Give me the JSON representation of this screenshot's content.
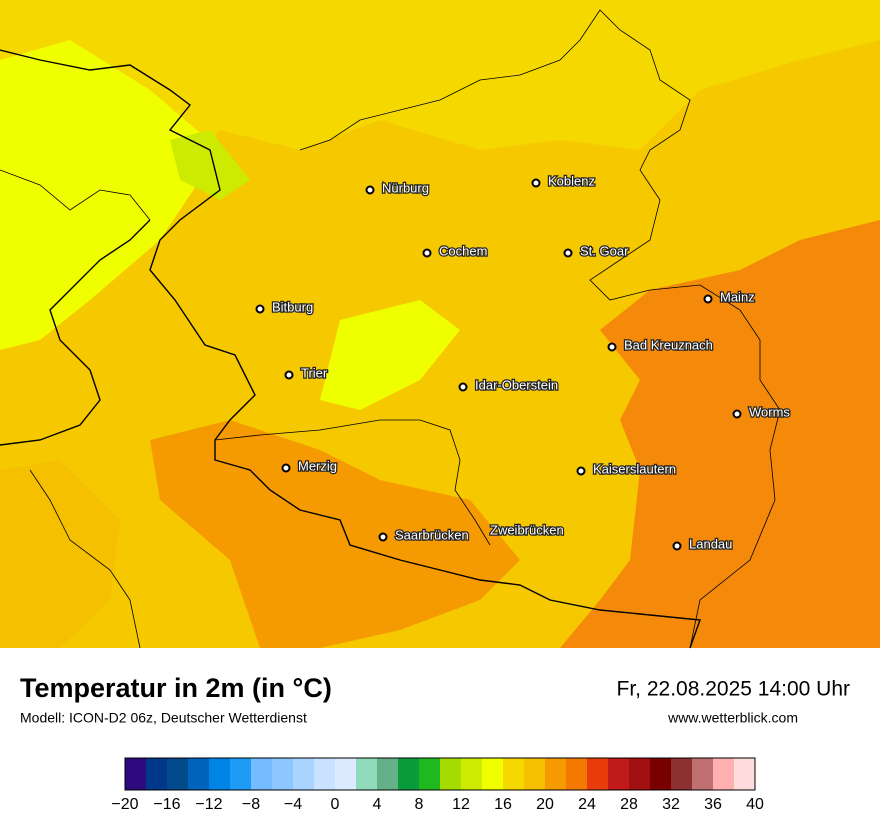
{
  "map": {
    "cities": [
      "Nürburg",
      "Koblenz",
      "Cochem",
      "St. Goar",
      "Mainz",
      "Bitburg",
      "Bad Kreuznach",
      "Trier",
      "Idar-Oberstein",
      "Worms",
      "Merzig",
      "Kaiserslautern",
      "Saarbrücken",
      "Zweibrücken",
      "Landau"
    ]
  },
  "footer": {
    "title": "Temperatur in 2m (in °C)",
    "subtitle": "Modell: ICON-D2 06z, Deutscher Wetterdienst",
    "datetime": "Fr, 22.08.2025 14:00 Uhr",
    "website": "www.wetterblick.com"
  },
  "colorbar": {
    "min": -20,
    "max": 40,
    "colors": [
      "#2d0a7e",
      "#00388a",
      "#004a8c",
      "#0064bf",
      "#0085e6",
      "#1e9bf5",
      "#74bcff",
      "#8cc8ff",
      "#a8d4ff",
      "#c8e2ff",
      "#dceaff",
      "#8fdbbb",
      "#64b088",
      "#0a9c3a",
      "#1fb81f",
      "#a6db00",
      "#cdeb00",
      "#f0ff00",
      "#f5d800",
      "#f5c000",
      "#f59a00",
      "#f57800",
      "#e83c0a",
      "#c01a1a",
      "#a01010",
      "#7a0000",
      "#8c3030",
      "#c07070",
      "#ffb0b0",
      "#ffdcdc"
    ],
    "ticks": [
      {
        "value": -20,
        "label": "−20"
      },
      {
        "value": -16,
        "label": "−16"
      },
      {
        "value": -12,
        "label": "−12"
      },
      {
        "value": -8,
        "label": "−8"
      },
      {
        "value": -4,
        "label": "−4"
      },
      0,
      4,
      8,
      12,
      16,
      20,
      24,
      28,
      32,
      36,
      40
    ]
  }
}
